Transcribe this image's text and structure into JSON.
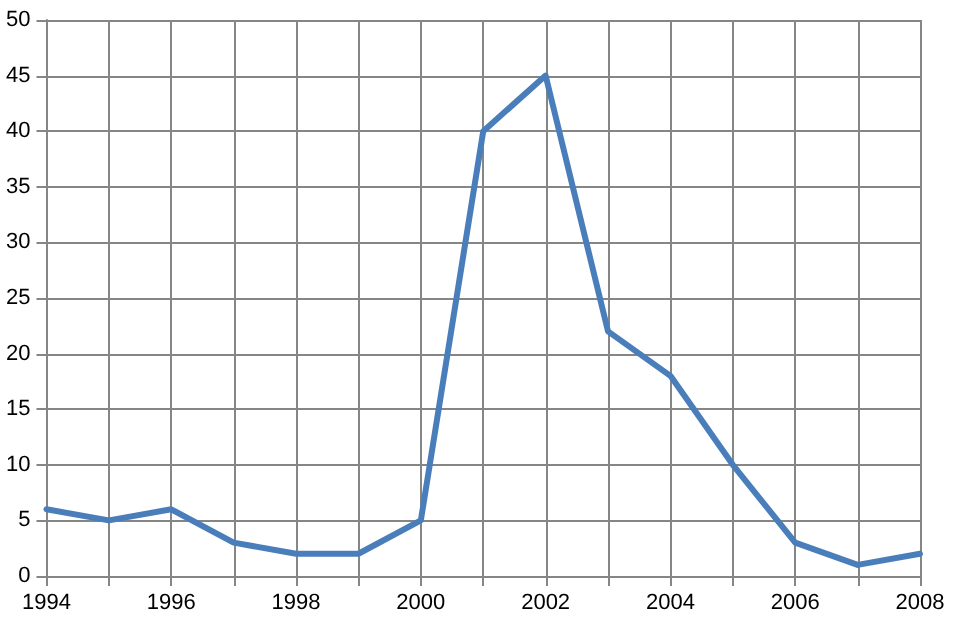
{
  "chart_data": {
    "type": "line",
    "x": [
      1994,
      1995,
      1996,
      1997,
      1998,
      1999,
      2000,
      2001,
      2002,
      2003,
      2004,
      2005,
      2006,
      2007,
      2008
    ],
    "series": [
      {
        "color": "#4a7ebb",
        "values": [
          6,
          5,
          6,
          3,
          2,
          2,
          5,
          40,
          45,
          22,
          18,
          10,
          3,
          1,
          2
        ]
      }
    ],
    "xlim": [
      1994,
      2008
    ],
    "xticks": [
      1994,
      {
        "value": 1995,
        "label": null
      },
      1996,
      {
        "value": 1997,
        "label": null
      },
      1998,
      {
        "value": 1999,
        "label": null
      },
      2000,
      {
        "value": 2001,
        "label": null
      },
      2002,
      {
        "value": 2003,
        "label": null
      },
      2004,
      {
        "value": 2005,
        "label": null
      },
      2006,
      {
        "value": 2007,
        "label": null
      },
      2008
    ],
    "ylim": [
      0,
      50
    ],
    "yticks": [
      0,
      5,
      10,
      15,
      20,
      25,
      30,
      35,
      40,
      45,
      50
    ],
    "grid": true,
    "marker": "none",
    "line_style": "solid"
  }
}
